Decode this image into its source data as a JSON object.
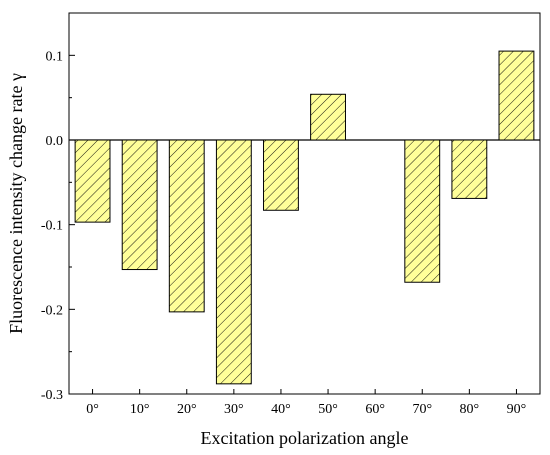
{
  "chart_data": {
    "type": "bar",
    "xlabel": "Excitation polarization angle",
    "ylabel": "Fluorescence intensity change rate γ",
    "categories": [
      "0°",
      "10°",
      "20°",
      "30°",
      "40°",
      "50°",
      "60°",
      "70°",
      "80°",
      "90°"
    ],
    "values": [
      -0.097,
      -0.153,
      -0.203,
      -0.288,
      -0.083,
      0.054,
      0.0,
      -0.168,
      -0.069,
      0.105
    ],
    "ylim": [
      -0.3,
      0.15
    ],
    "yticks": [
      0.1,
      0.0,
      -0.1,
      -0.2,
      -0.3
    ],
    "ytick_labels": [
      "0.1",
      "0.0",
      "-0.1",
      "-0.2",
      "-0.3"
    ],
    "grid": false,
    "bar_fill": "#ffff99",
    "bar_hatch": "diagonal lines",
    "bar_edge": "#000000"
  }
}
